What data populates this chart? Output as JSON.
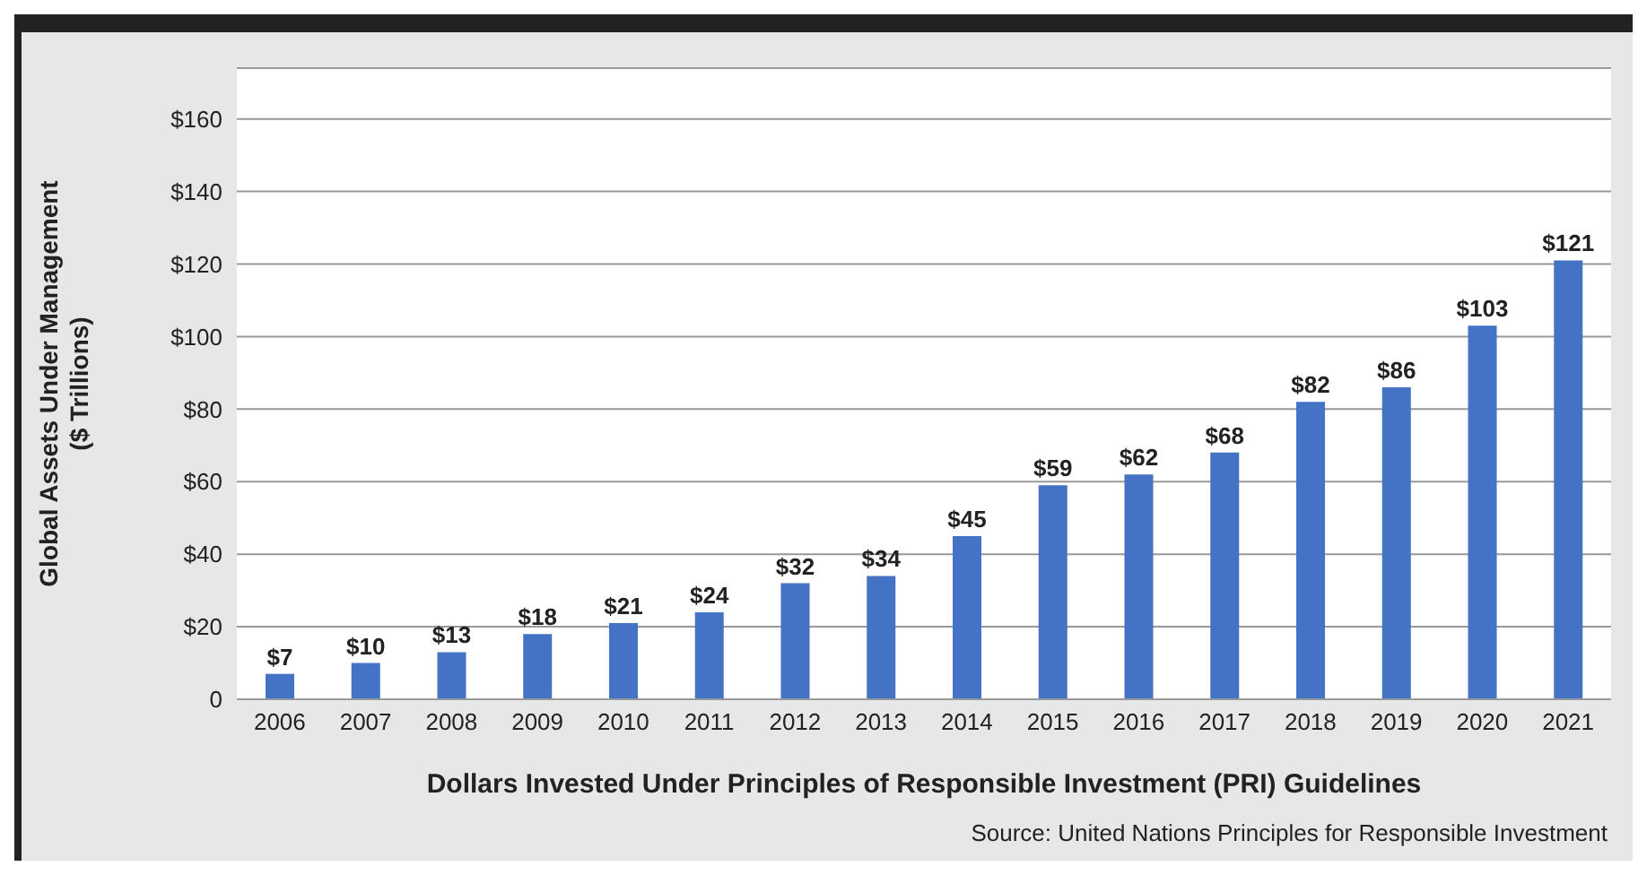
{
  "chart_data": {
    "type": "bar",
    "xlabel": "Dollars Invested Under Principles of Responsible Investment (PRI) Guidelines",
    "ylabel": "Global Assets Under Management\n($ Trillions)",
    "categories": [
      "2006",
      "2007",
      "2008",
      "2009",
      "2010",
      "2011",
      "2012",
      "2013",
      "2014",
      "2015",
      "2016",
      "2017",
      "2018",
      "2019",
      "2020",
      "2021"
    ],
    "values": [
      7,
      10,
      13,
      18,
      21,
      24,
      32,
      34,
      45,
      59,
      62,
      68,
      82,
      86,
      103,
      121
    ],
    "value_labels": [
      "$7",
      "$10",
      "$13",
      "$18",
      "$21",
      "$24",
      "$32",
      "$34",
      "$45",
      "$59",
      "$62",
      "$68",
      "$82",
      "$86",
      "$103",
      "$121"
    ],
    "color": "#4472c4",
    "ylim": [
      0,
      174
    ],
    "yticks": [
      {
        "value": 0,
        "label": "0"
      },
      {
        "value": 20,
        "label": "$20"
      },
      {
        "value": 40,
        "label": "$40"
      },
      {
        "value": 60,
        "label": "$60"
      },
      {
        "value": 80,
        "label": "$80"
      },
      {
        "value": 100,
        "label": "$100"
      },
      {
        "value": 120,
        "label": "$120"
      },
      {
        "value": 140,
        "label": "$140"
      },
      {
        "value": 160,
        "label": "$160"
      }
    ],
    "grid": "y",
    "legend": false,
    "annotations": [
      "Source: United Nations Principles for Responsible Investment"
    ]
  }
}
